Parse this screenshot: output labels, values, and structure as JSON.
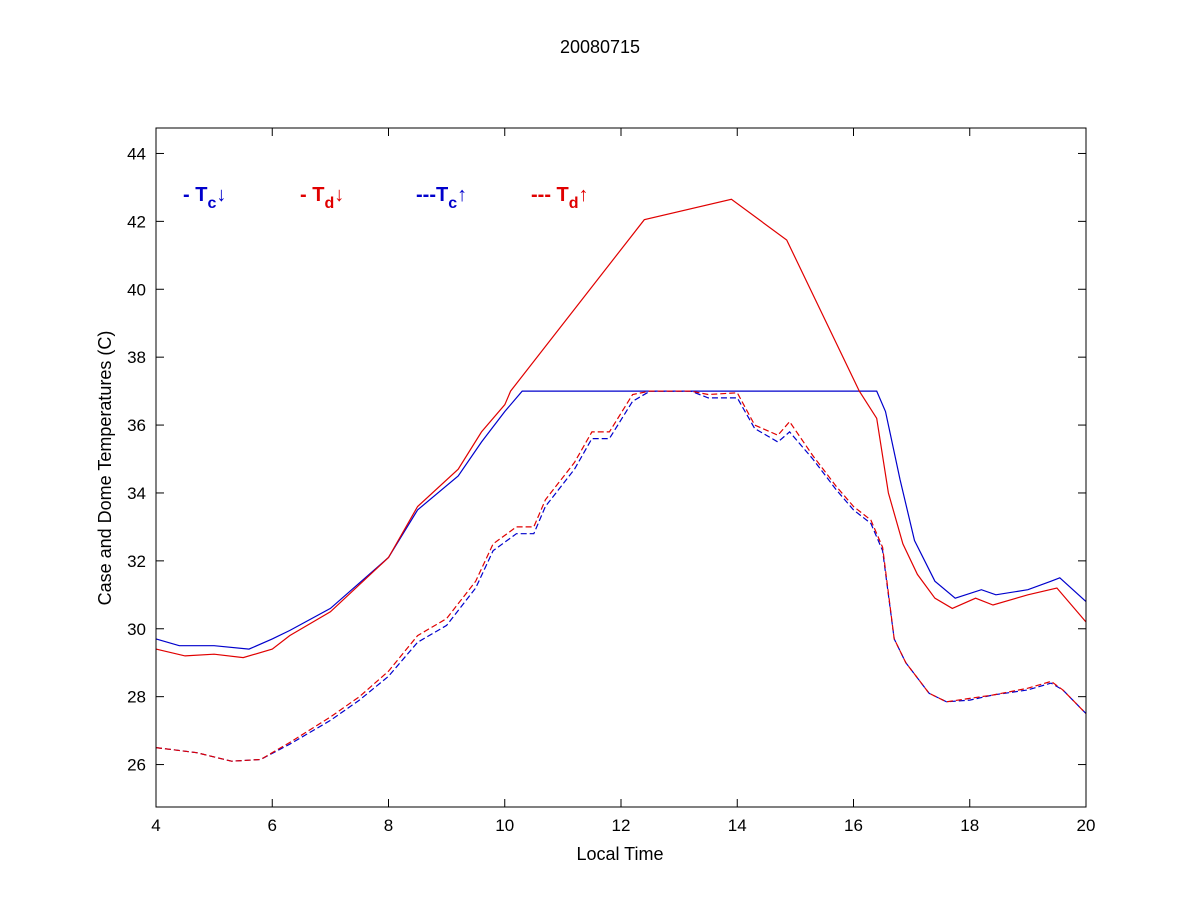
{
  "chart_data": {
    "type": "line",
    "title": "20080715",
    "xlabel": "Local Time",
    "ylabel": "Case and Dome Temperatures (C)",
    "xlim": [
      4,
      20
    ],
    "ylim": [
      24.75,
      44.75
    ],
    "xticks": [
      4,
      6,
      8,
      10,
      12,
      14,
      16,
      18,
      20
    ],
    "yticks": [
      26,
      28,
      30,
      32,
      34,
      36,
      38,
      40,
      42,
      44
    ],
    "grid": false,
    "legend_placement": "top-left",
    "colors": {
      "blue": "#0000cc",
      "red": "#e00000"
    },
    "series": [
      {
        "name": "Tc down",
        "legend": {
          "prefix": "- T",
          "sub": "c",
          "arrow": "↓"
        },
        "color": "#0000cc",
        "dash": false,
        "x": [
          4,
          4.4,
          5,
          5.6,
          6,
          6.3,
          7,
          8,
          8.5,
          9.2,
          9.6,
          10,
          10.3,
          16.4,
          16.55,
          16.8,
          17.05,
          17.4,
          17.75,
          18.2,
          18.45,
          19,
          19.4,
          19.55,
          20
        ],
        "y": [
          29.7,
          29.5,
          29.5,
          29.4,
          29.7,
          29.95,
          30.6,
          32.1,
          33.5,
          34.5,
          35.5,
          36.4,
          37.0,
          37.0,
          36.4,
          34.4,
          32.6,
          31.4,
          30.9,
          31.15,
          31.0,
          31.15,
          31.4,
          31.5,
          30.8
        ]
      },
      {
        "name": "Td down",
        "legend": {
          "prefix": "- T",
          "sub": "d",
          "arrow": "↓"
        },
        "color": "#e00000",
        "dash": false,
        "x": [
          4,
          4.5,
          5,
          5.5,
          6,
          6.3,
          7,
          8,
          8.5,
          9.2,
          9.6,
          10,
          10.1,
          12.4,
          13.9,
          14.85,
          16.1,
          16.4,
          16.6,
          16.85,
          17.1,
          17.4,
          17.7,
          18.1,
          18.4,
          19,
          19.5,
          20
        ],
        "y": [
          29.4,
          29.2,
          29.25,
          29.15,
          29.4,
          29.8,
          30.5,
          32.1,
          33.6,
          34.7,
          35.8,
          36.6,
          37.0,
          42.05,
          42.65,
          41.45,
          37.0,
          36.2,
          34.0,
          32.5,
          31.6,
          30.9,
          30.6,
          30.9,
          30.7,
          31.0,
          31.2,
          30.2
        ]
      },
      {
        "name": "Tc up",
        "legend": {
          "prefix": "---T",
          "sub": "c",
          "arrow": "↑"
        },
        "color": "#0000cc",
        "dash": true,
        "x": [
          4,
          4.7,
          5.3,
          5.8,
          6.3,
          7,
          7.5,
          8,
          8.5,
          9,
          9.5,
          9.8,
          10.2,
          10.5,
          10.7,
          11.2,
          11.5,
          11.8,
          12.2,
          12.5,
          13.2,
          13.5,
          14,
          14.3,
          14.7,
          14.9,
          15.3,
          15.7,
          16,
          16.3,
          16.5,
          16.7,
          16.9,
          17.3,
          17.6,
          18,
          18.4,
          19,
          19.4,
          19.6,
          20
        ],
        "y": [
          26.5,
          26.35,
          26.1,
          26.15,
          26.6,
          27.3,
          27.9,
          28.6,
          29.6,
          30.1,
          31.2,
          32.3,
          32.8,
          32.8,
          33.6,
          34.7,
          35.6,
          35.6,
          36.7,
          37.0,
          37.0,
          36.8,
          36.8,
          35.9,
          35.5,
          35.8,
          35.0,
          34.1,
          33.5,
          33.1,
          32.3,
          29.7,
          29.0,
          28.1,
          27.85,
          27.9,
          28.05,
          28.2,
          28.4,
          28.2,
          27.5
        ]
      },
      {
        "name": "Td up",
        "legend": {
          "prefix": "--- T",
          "sub": "d",
          "arrow": "↑"
        },
        "color": "#e00000",
        "dash": true,
        "x": [
          4,
          4.7,
          5.3,
          5.8,
          6.3,
          7,
          7.5,
          8,
          8.5,
          9,
          9.5,
          9.8,
          10.2,
          10.5,
          10.7,
          11.2,
          11.5,
          11.8,
          12.2,
          12.5,
          13.2,
          13.5,
          14,
          14.3,
          14.7,
          14.9,
          15.3,
          15.7,
          16,
          16.3,
          16.5,
          16.7,
          16.9,
          17.3,
          17.6,
          18,
          18.4,
          19,
          19.4,
          19.6,
          20
        ],
        "y": [
          26.5,
          26.35,
          26.1,
          26.15,
          26.65,
          27.4,
          28.0,
          28.75,
          29.8,
          30.3,
          31.4,
          32.5,
          33.0,
          33.0,
          33.8,
          34.9,
          35.8,
          35.8,
          36.9,
          37.0,
          37.0,
          36.9,
          36.95,
          36.0,
          35.7,
          36.1,
          35.1,
          34.2,
          33.6,
          33.2,
          32.4,
          29.7,
          29.0,
          28.1,
          27.85,
          27.95,
          28.05,
          28.25,
          28.45,
          28.2,
          27.5
        ]
      }
    ]
  }
}
